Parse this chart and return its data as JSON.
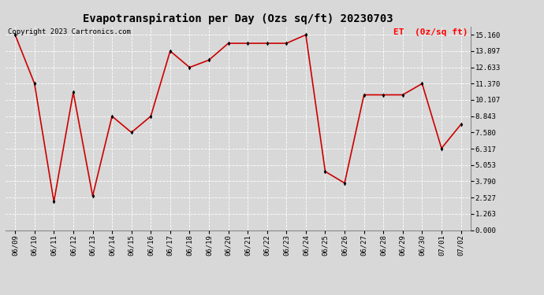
{
  "title": "Evapotranspiration per Day (Ozs sq/ft) 20230703",
  "copyright": "Copyright 2023 Cartronics.com",
  "legend_label": "ET  (0z/sq ft)",
  "dates": [
    "06/09",
    "06/10",
    "06/11",
    "06/12",
    "06/13",
    "06/14",
    "06/15",
    "06/16",
    "06/17",
    "06/18",
    "06/19",
    "06/20",
    "06/21",
    "06/22",
    "06/23",
    "06/24",
    "06/25",
    "06/26",
    "06/27",
    "06/28",
    "06/29",
    "06/30",
    "07/01",
    "07/02"
  ],
  "values": [
    15.16,
    11.37,
    2.2,
    10.7,
    2.65,
    8.84,
    7.58,
    8.84,
    13.9,
    12.63,
    13.2,
    14.5,
    14.5,
    14.5,
    14.5,
    15.16,
    4.55,
    3.65,
    10.5,
    10.5,
    10.5,
    11.37,
    6.35,
    8.2
  ],
  "yticks": [
    0.0,
    1.263,
    2.527,
    3.79,
    5.053,
    6.317,
    7.58,
    8.843,
    10.107,
    11.37,
    12.633,
    13.897,
    15.16
  ],
  "ylim": [
    0.0,
    15.8
  ],
  "line_color": "#cc0000",
  "marker_color": "#000000",
  "background_color": "#d8d8d8",
  "grid_color": "#ffffff",
  "title_fontsize": 10,
  "copyright_fontsize": 6.5,
  "legend_fontsize": 8,
  "tick_fontsize": 6.5
}
